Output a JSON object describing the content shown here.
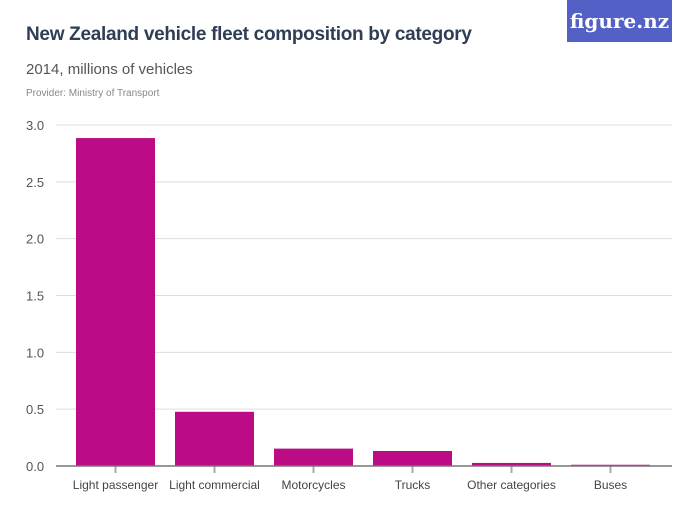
{
  "header": {
    "title": "New Zealand vehicle fleet composition by category",
    "subtitle": "2014, millions of vehicles",
    "provider": "Provider: Ministry of Transport",
    "logo": "figure.nz"
  },
  "colors": {
    "bar": "#bb0c86",
    "logo_bg": "#5361c6"
  },
  "chart_data": {
    "type": "bar",
    "title": "New Zealand vehicle fleet composition by category",
    "subtitle": "2014, millions of vehicles",
    "categories": [
      "Light passenger",
      "Light commercial",
      "Motorcycles",
      "Trucks",
      "Other categories",
      "Buses"
    ],
    "values": [
      2.885,
      0.477,
      0.153,
      0.132,
      0.027,
      0.011
    ],
    "ylim": [
      0,
      3.0
    ],
    "yticks": [
      "0.0",
      "0.5",
      "1.0",
      "1.5",
      "2.0",
      "2.5",
      "3.0"
    ],
    "grid": true,
    "xlabel": "",
    "ylabel": ""
  }
}
